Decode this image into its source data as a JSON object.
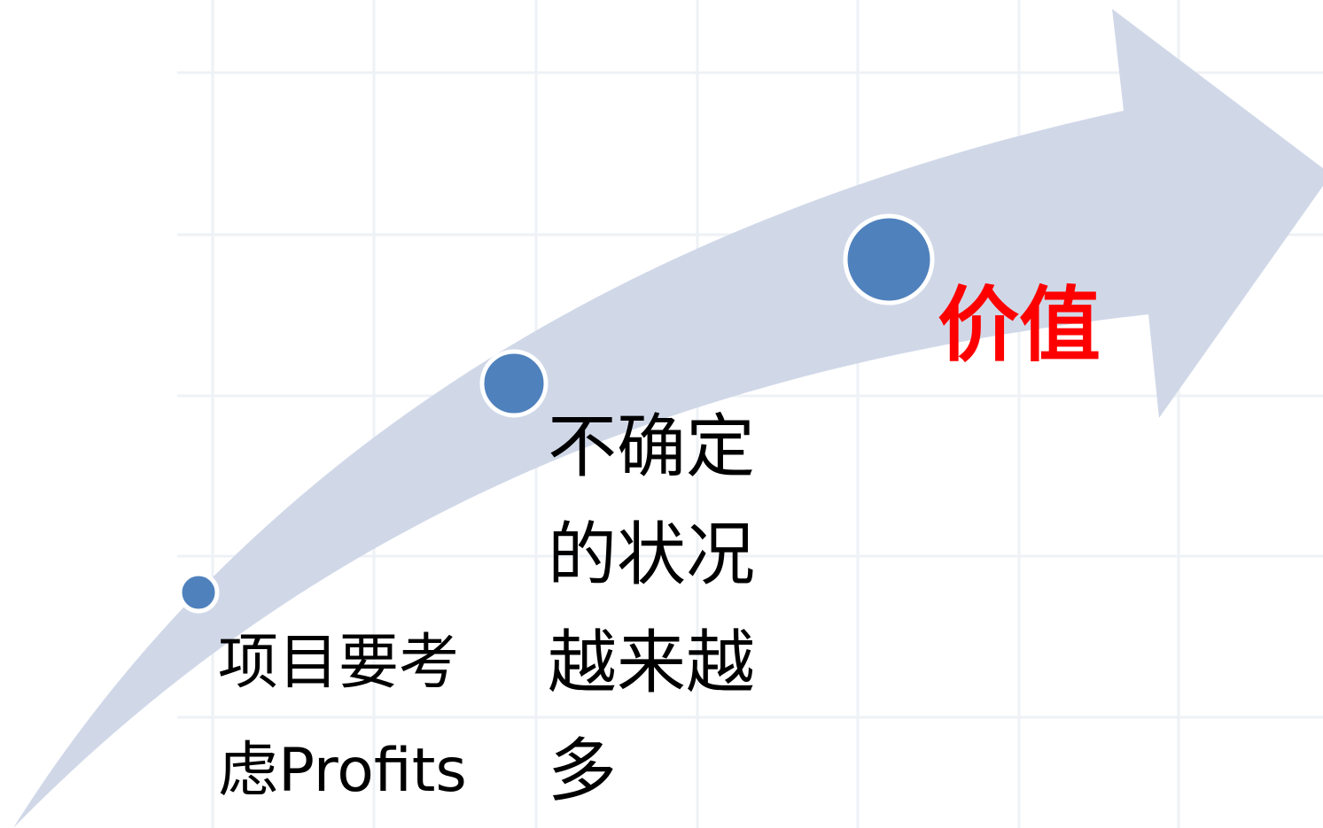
{
  "steps": [
    {
      "label": "项目要考虑Profits"
    },
    {
      "label": "不确定的状况越来越多"
    },
    {
      "label": "价值"
    }
  ]
}
